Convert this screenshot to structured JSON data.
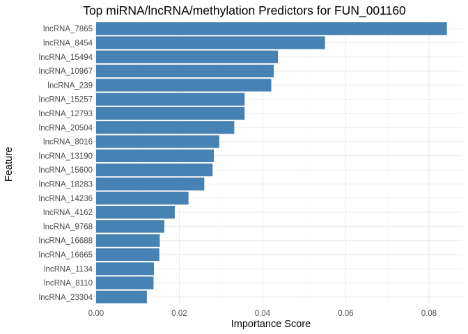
{
  "chart_data": {
    "type": "bar",
    "orientation": "horizontal",
    "title": "Top miRNA/lncRNA/methylation Predictors for FUN_001160",
    "xlabel": "Importance Score",
    "ylabel": "Feature",
    "xlim": [
      0,
      0.0845
    ],
    "x_ticks": [
      "0.00",
      "0.02",
      "0.04",
      "0.06",
      "0.08"
    ],
    "x_tick_values": [
      0,
      0.02,
      0.04,
      0.06,
      0.08
    ],
    "grid": true,
    "bar_color": "#4682b4",
    "categories": [
      "lncRNA_7865",
      "lncRNA_8454",
      "lncRNA_15494",
      "lncRNA_10967",
      "lncRNA_239",
      "lncRNA_15257",
      "lncRNA_12793",
      "lncRNA_20504",
      "lncRNA_8016",
      "lncRNA_13190",
      "lncRNA_15600",
      "lncRNA_18283",
      "lncRNA_14236",
      "lncRNA_4162",
      "lncRNA_9768",
      "lncRNA_16688",
      "lncRNA_16665",
      "lncRNA_1134",
      "lncRNA_8110",
      "lncRNA_23304"
    ],
    "values": [
      0.0843,
      0.055,
      0.0437,
      0.0427,
      0.0421,
      0.0357,
      0.0357,
      0.0332,
      0.0296,
      0.0283,
      0.028,
      0.026,
      0.0222,
      0.0189,
      0.0164,
      0.0153,
      0.0152,
      0.0139,
      0.0138,
      0.0122
    ]
  }
}
